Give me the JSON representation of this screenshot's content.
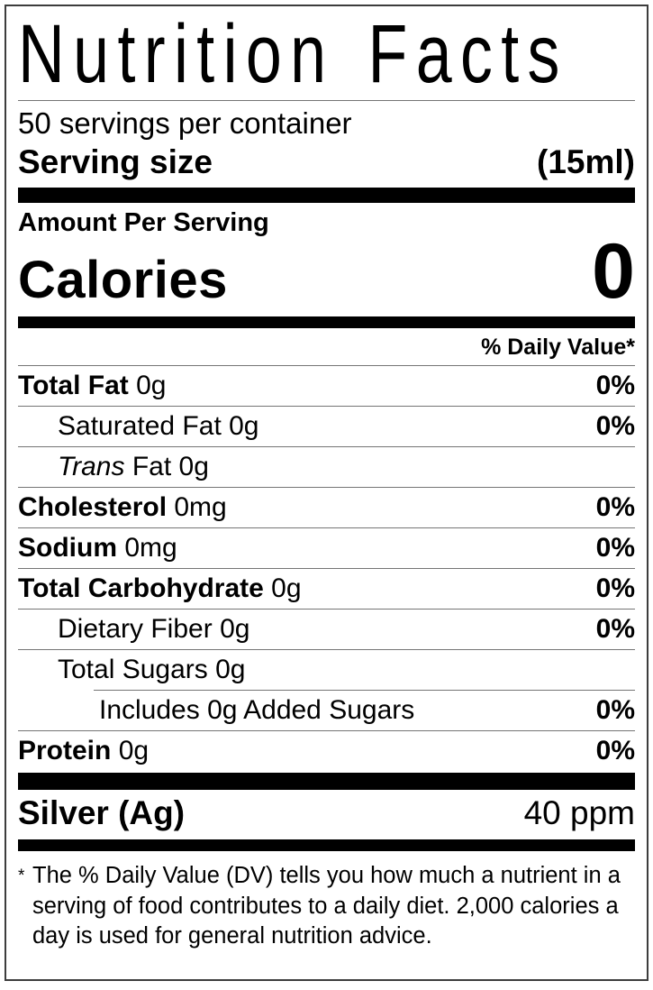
{
  "colors": {
    "text": "#000000",
    "background": "#ffffff",
    "border": "#3d3d3d",
    "hairline": "#757575",
    "bar": "#000000"
  },
  "label": {
    "title": "Nutrition Facts",
    "servings_per_container": "50 servings per container",
    "serving_size": {
      "label": "Serving size",
      "value": "(15ml)"
    },
    "amount_per_serving": "Amount Per Serving",
    "calories": {
      "label": "Calories",
      "value": "0"
    },
    "daily_value_header": "% Daily Value*",
    "rows": [
      {
        "name": "Total Fat",
        "amount": "0g",
        "dv": "0%"
      },
      {
        "name": "Saturated Fat",
        "amount": "0g",
        "dv": "0%"
      },
      {
        "name_italic": "Trans",
        "name": "Fat",
        "amount": "0g",
        "dv": ""
      },
      {
        "name": "Cholesterol",
        "amount": "0mg",
        "dv": "0%"
      },
      {
        "name": "Sodium",
        "amount": "0mg",
        "dv": "0%"
      },
      {
        "name": "Total Carbohydrate",
        "amount": "0g",
        "dv": "0%"
      },
      {
        "name": "Dietary Fiber",
        "amount": "0g",
        "dv": "0%"
      },
      {
        "name": "Total Sugars",
        "amount": "0g",
        "dv": ""
      },
      {
        "name": "Includes 0g Added Sugars",
        "amount": "",
        "dv": "0%"
      },
      {
        "name": "Protein",
        "amount": "0g",
        "dv": "0%"
      }
    ],
    "mineral": {
      "name": "Silver (Ag)",
      "value": "40 ppm"
    },
    "footnote": {
      "marker": "*",
      "lines": {
        "0": "The % Daily Value (DV) tells you how much a nutrient in a",
        "1": "serving of food contributes to a daily diet. 2,000 calories a",
        "2": "day is used for general nutrition advice."
      }
    }
  }
}
